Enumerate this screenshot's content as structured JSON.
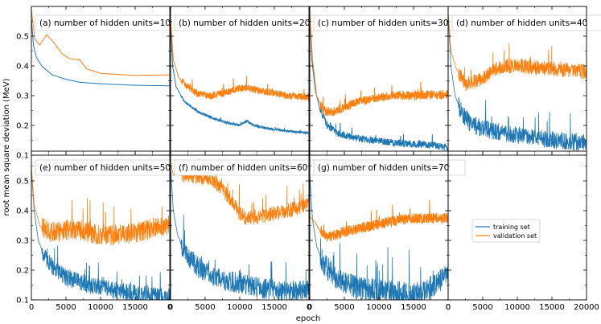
{
  "chart_data": {
    "type": "line",
    "xlabel": "epoch",
    "ylabel": "root mean square deviation (MeV)",
    "ylim": [
      0.1,
      0.6
    ],
    "xlim": [
      0,
      20000
    ],
    "y_ticks": [
      "0.1",
      "0.2",
      "0.3",
      "0.4",
      "0.5"
    ],
    "x_ticks_inner": [
      "0",
      "5000",
      "10000",
      "15000",
      "0"
    ],
    "x_ticks_last": [
      "0",
      "5000",
      "10000",
      "15000",
      "20000"
    ],
    "grid": false,
    "legend": {
      "location": "lower-right panel, center",
      "entries": [
        {
          "name": "training set",
          "color": "#1f77b4"
        },
        {
          "name": "validation set",
          "color": "#ff7f0e"
        }
      ]
    },
    "panels": [
      {
        "title": "(a) number of hidden units=10",
        "series": [
          {
            "name": "training set",
            "color": "#1f77b4",
            "noise": 0.0,
            "points": [
              [
                0,
                0.56
              ],
              [
                300,
                0.47
              ],
              [
                700,
                0.43
              ],
              [
                1500,
                0.4
              ],
              [
                3000,
                0.37
              ],
              [
                5000,
                0.355
              ],
              [
                7000,
                0.345
              ],
              [
                10000,
                0.34
              ],
              [
                15000,
                0.335
              ],
              [
                20000,
                0.333
              ]
            ]
          },
          {
            "name": "validation set",
            "color": "#ff7f0e",
            "noise": 0.0,
            "points": [
              [
                0,
                0.59
              ],
              [
                500,
                0.49
              ],
              [
                1200,
                0.47
              ],
              [
                2200,
                0.505
              ],
              [
                3200,
                0.48
              ],
              [
                4500,
                0.44
              ],
              [
                5500,
                0.425
              ],
              [
                7000,
                0.42
              ],
              [
                8000,
                0.39
              ],
              [
                10000,
                0.375
              ],
              [
                15000,
                0.368
              ],
              [
                20000,
                0.37
              ]
            ]
          }
        ]
      },
      {
        "title": "(b) number of hidden units=20",
        "series": [
          {
            "name": "training set",
            "color": "#1f77b4",
            "noise": 0.004,
            "points": [
              [
                0,
                0.55
              ],
              [
                300,
                0.4
              ],
              [
                800,
                0.33
              ],
              [
                2000,
                0.28
              ],
              [
                4000,
                0.245
              ],
              [
                6000,
                0.225
              ],
              [
                8000,
                0.21
              ],
              [
                10000,
                0.2
              ],
              [
                11000,
                0.215
              ],
              [
                12000,
                0.2
              ],
              [
                14000,
                0.19
              ],
              [
                17000,
                0.18
              ],
              [
                20000,
                0.175
              ]
            ]
          },
          {
            "name": "validation set",
            "color": "#ff7f0e",
            "noise": 0.012,
            "points": [
              [
                0,
                0.56
              ],
              [
                400,
                0.42
              ],
              [
                1200,
                0.36
              ],
              [
                2500,
                0.33
              ],
              [
                4000,
                0.305
              ],
              [
                6000,
                0.3
              ],
              [
                8000,
                0.31
              ],
              [
                10000,
                0.325
              ],
              [
                11500,
                0.325
              ],
              [
                13000,
                0.315
              ],
              [
                15000,
                0.31
              ],
              [
                17000,
                0.3
              ],
              [
                20000,
                0.295
              ]
            ]
          }
        ]
      },
      {
        "title": "(c) number of hidden units=30",
        "series": [
          {
            "name": "training set",
            "color": "#1f77b4",
            "noise": 0.012,
            "points": [
              [
                0,
                0.58
              ],
              [
                300,
                0.42
              ],
              [
                800,
                0.32
              ],
              [
                1500,
                0.25
              ],
              [
                2500,
                0.2
              ],
              [
                4000,
                0.175
              ],
              [
                6000,
                0.16
              ],
              [
                9000,
                0.15
              ],
              [
                13000,
                0.14
              ],
              [
                17000,
                0.135
              ],
              [
                20000,
                0.125
              ]
            ]
          },
          {
            "name": "validation set",
            "color": "#ff7f0e",
            "noise": 0.015,
            "points": [
              [
                0,
                0.58
              ],
              [
                400,
                0.42
              ],
              [
                1000,
                0.3
              ],
              [
                2000,
                0.25
              ],
              [
                3000,
                0.245
              ],
              [
                5000,
                0.26
              ],
              [
                7000,
                0.28
              ],
              [
                9000,
                0.29
              ],
              [
                12000,
                0.3
              ],
              [
                16000,
                0.3
              ],
              [
                20000,
                0.305
              ]
            ]
          }
        ]
      },
      {
        "title": "(d) number of hidden units=40",
        "series": [
          {
            "name": "training set",
            "color": "#1f77b4",
            "noise": 0.03,
            "points": [
              [
                0,
                0.58
              ],
              [
                400,
                0.4
              ],
              [
                1000,
                0.3
              ],
              [
                2000,
                0.24
              ],
              [
                3500,
                0.2
              ],
              [
                5000,
                0.19
              ],
              [
                7000,
                0.18
              ],
              [
                9000,
                0.17
              ],
              [
                12000,
                0.16
              ],
              [
                16000,
                0.15
              ],
              [
                20000,
                0.14
              ]
            ]
          },
          {
            "name": "validation set",
            "color": "#ff7f0e",
            "noise": 0.025,
            "points": [
              [
                0,
                0.58
              ],
              [
                400,
                0.45
              ],
              [
                1200,
                0.39
              ],
              [
                2500,
                0.34
              ],
              [
                3500,
                0.345
              ],
              [
                5000,
                0.36
              ],
              [
                7000,
                0.39
              ],
              [
                9000,
                0.4
              ],
              [
                12000,
                0.395
              ],
              [
                16000,
                0.39
              ],
              [
                20000,
                0.38
              ]
            ]
          }
        ]
      },
      {
        "title": "(e) number of hidden units=50",
        "series": [
          {
            "name": "training set",
            "color": "#1f77b4",
            "noise": 0.03,
            "points": [
              [
                0,
                0.54
              ],
              [
                400,
                0.4
              ],
              [
                1000,
                0.3
              ],
              [
                2000,
                0.24
              ],
              [
                3500,
                0.2
              ],
              [
                5000,
                0.175
              ],
              [
                7000,
                0.16
              ],
              [
                10000,
                0.14
              ],
              [
                14000,
                0.125
              ],
              [
                17000,
                0.115
              ],
              [
                20000,
                0.11
              ]
            ]
          },
          {
            "name": "validation set",
            "color": "#ff7f0e",
            "noise": 0.035,
            "points": [
              [
                0,
                0.55
              ],
              [
                400,
                0.42
              ],
              [
                1200,
                0.35
              ],
              [
                2500,
                0.33
              ],
              [
                4000,
                0.33
              ],
              [
                6000,
                0.34
              ],
              [
                8000,
                0.33
              ],
              [
                10000,
                0.315
              ],
              [
                13000,
                0.32
              ],
              [
                16000,
                0.33
              ],
              [
                18000,
                0.345
              ],
              [
                20000,
                0.35
              ]
            ]
          }
        ]
      },
      {
        "title": "(f) number of hidden units=60",
        "series": [
          {
            "name": "training set",
            "color": "#1f77b4",
            "noise": 0.035,
            "points": [
              [
                0,
                0.55
              ],
              [
                400,
                0.4
              ],
              [
                1000,
                0.32
              ],
              [
                2000,
                0.26
              ],
              [
                4000,
                0.21
              ],
              [
                6000,
                0.18
              ],
              [
                8000,
                0.165
              ],
              [
                10000,
                0.155
              ],
              [
                13000,
                0.14
              ],
              [
                16000,
                0.13
              ],
              [
                20000,
                0.13
              ]
            ]
          },
          {
            "name": "validation set",
            "color": "#ff7f0e",
            "noise": 0.025,
            "points": [
              [
                0,
                0.56
              ],
              [
                400,
                0.52
              ],
              [
                1500,
                0.52
              ],
              [
                4000,
                0.515
              ],
              [
                6000,
                0.505
              ],
              [
                7500,
                0.47
              ],
              [
                9000,
                0.43
              ],
              [
                10000,
                0.39
              ],
              [
                11000,
                0.375
              ],
              [
                13000,
                0.38
              ],
              [
                15000,
                0.39
              ],
              [
                17000,
                0.4
              ],
              [
                20000,
                0.42
              ]
            ]
          }
        ]
      },
      {
        "title": "(g) number of hidden units=70",
        "series": [
          {
            "name": "training set",
            "color": "#1f77b4",
            "noise": 0.04,
            "points": [
              [
                0,
                0.52
              ],
              [
                400,
                0.37
              ],
              [
                1000,
                0.28
              ],
              [
                2000,
                0.22
              ],
              [
                3500,
                0.18
              ],
              [
                5000,
                0.155
              ],
              [
                7000,
                0.14
              ],
              [
                10000,
                0.13
              ],
              [
                13000,
                0.125
              ],
              [
                16000,
                0.12
              ],
              [
                18500,
                0.16
              ],
              [
                19500,
                0.18
              ],
              [
                20000,
                0.17
              ]
            ]
          },
          {
            "name": "validation set",
            "color": "#ff7f0e",
            "noise": 0.018,
            "points": [
              [
                0,
                0.38
              ],
              [
                800,
                0.36
              ],
              [
                1500,
                0.33
              ],
              [
                2500,
                0.31
              ],
              [
                4000,
                0.32
              ],
              [
                6000,
                0.335
              ],
              [
                8000,
                0.345
              ],
              [
                10000,
                0.355
              ],
              [
                13000,
                0.37
              ],
              [
                16000,
                0.375
              ],
              [
                20000,
                0.375
              ]
            ]
          }
        ]
      }
    ]
  }
}
